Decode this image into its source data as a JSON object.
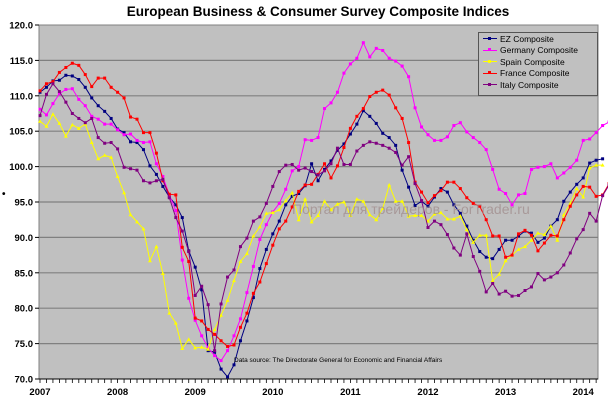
{
  "chart_data": {
    "type": "line",
    "title": "European Business & Consumer Survey Composite Indices",
    "xlabel": "",
    "ylabel": "",
    "ylim": [
      70,
      120
    ],
    "yticks": [
      "70.0",
      "75.0",
      "80.0",
      "85.0",
      "90.0",
      "95.0",
      "100.0",
      "105.0",
      "110.0",
      "115.0",
      "120.0"
    ],
    "xticks": [
      "2007",
      "2008",
      "2009",
      "2010",
      "2011",
      "2012",
      "2013",
      "2014"
    ],
    "x_start": "2007-01",
    "frequency": "monthly",
    "grid": true,
    "legend_position": "top-right",
    "annotation": "Data source: The Directorate General for Economic and Financial Affairs",
    "watermark": "Портал для трейдеров - ForTrader.ru",
    "series": [
      {
        "name": "EZ Composite",
        "color": "#000080",
        "marker": "square",
        "values": [
          110.5,
          111.2,
          112.1,
          112.2,
          112.9,
          112.8,
          112.3,
          111.2,
          109.7,
          108.6,
          107.8,
          106.8,
          105.3,
          104.8,
          103.5,
          103.4,
          102.4,
          100.1,
          98.9,
          97.2,
          95.7,
          94.6,
          92.8,
          88.1,
          85.8,
          82.6,
          74.0,
          73.8,
          71.4,
          70.3,
          72.0,
          75.4,
          78.2,
          81.5,
          85.6,
          88.3,
          90.5,
          92.3,
          94.6,
          95.8,
          96.2,
          97.3,
          100.4,
          98.0,
          99.6,
          100.8,
          102.3,
          103.2,
          104.6,
          106.0,
          107.9,
          107.1,
          106.1,
          104.7,
          104.1,
          103.0,
          99.5,
          97.1,
          94.5,
          95.1,
          94.4,
          95.7,
          96.9,
          96.4,
          94.6,
          93.4,
          91.6,
          89.6,
          88.0,
          87.2,
          87.0,
          88.3,
          89.6,
          89.6,
          90.2,
          90.9,
          90.6,
          89.3,
          89.9,
          91.6,
          92.5,
          95.1,
          96.4,
          97.5,
          98.4,
          100.5,
          100.9,
          101.1
        ]
      },
      {
        "name": "Germany Composite",
        "color": "#ff00ff",
        "marker": "square",
        "values": [
          108.1,
          107.3,
          108.9,
          110.3,
          110.9,
          111.0,
          109.5,
          108.6,
          107.1,
          106.7,
          106.0,
          106.0,
          105.2,
          104.5,
          104.6,
          103.7,
          103.4,
          103.5,
          100.4,
          98.6,
          96.0,
          93.8,
          86.8,
          81.4,
          78.3,
          76.1,
          74.4,
          73.3,
          72.6,
          74.0,
          76.1,
          78.5,
          82.2,
          85.9,
          89.7,
          91.8,
          93.6,
          94.8,
          96.8,
          99.4,
          100.0,
          103.8,
          103.7,
          104.1,
          108.2,
          109.0,
          110.5,
          113.2,
          114.5,
          115.3,
          117.5,
          115.5,
          116.7,
          116.4,
          115.3,
          114.9,
          114.2,
          112.7,
          108.3,
          105.6,
          104.5,
          103.7,
          103.7,
          104.2,
          105.8,
          106.2,
          104.9,
          104.1,
          103.4,
          102.4,
          99.6,
          96.8,
          96.2,
          94.6,
          96.0,
          96.2,
          99.6,
          99.9,
          100.0,
          100.4,
          98.4,
          99.1,
          99.9,
          100.9,
          103.7,
          103.9,
          104.8,
          105.8,
          106.3,
          106.8,
          107.3
        ]
      },
      {
        "name": "Spain Composite",
        "color": "#ffff00",
        "marker": "triangle",
        "values": [
          106.4,
          105.7,
          107.4,
          106.1,
          104.3,
          105.9,
          105.4,
          106.0,
          103.4,
          101.1,
          101.6,
          101.3,
          98.6,
          96.3,
          93.2,
          92.2,
          91.2,
          86.7,
          88.7,
          84.9,
          79.3,
          77.9,
          74.3,
          75.6,
          74.4,
          74.5,
          74.2,
          77.0,
          79.0,
          81.1,
          83.9,
          86.6,
          87.7,
          90.2,
          91.5,
          93.4,
          93.5,
          93.9,
          95.2,
          96.3,
          92.5,
          95.4,
          92.2,
          93.1,
          95.1,
          93.9,
          94.7,
          95.0,
          93.1,
          95.4,
          95.1,
          93.2,
          92.5,
          94.1,
          97.4,
          95.1,
          95.1,
          93.0,
          93.1,
          93.1,
          92.3,
          93.3,
          93.5,
          92.6,
          92.6,
          93.0,
          91.1,
          89.3,
          90.3,
          90.3,
          83.9,
          84.8,
          86.7,
          87.5,
          88.3,
          88.7,
          89.6,
          90.6,
          90.4,
          91.6,
          89.6,
          93.2,
          94.8,
          96.9,
          95.7,
          99.8,
          100.2,
          100.2
        ]
      },
      {
        "name": "France Composite",
        "color": "#ff0000",
        "marker": "square",
        "values": [
          110.7,
          111.7,
          112.0,
          113.3,
          114.0,
          114.6,
          114.3,
          113.0,
          111.3,
          112.5,
          112.5,
          111.2,
          110.5,
          109.7,
          107.0,
          106.7,
          104.8,
          104.8,
          101.9,
          98.0,
          96.1,
          96.0,
          88.6,
          86.6,
          78.6,
          78.2,
          77.0,
          76.3,
          75.4,
          74.6,
          74.8,
          77.3,
          79.3,
          82.1,
          83.7,
          86.3,
          88.9,
          91.2,
          92.3,
          94.3,
          96.5,
          97.4,
          97.5,
          98.9,
          100.4,
          98.4,
          100.1,
          102.7,
          105.4,
          107.1,
          108.2,
          109.9,
          110.5,
          110.8,
          110.1,
          108.3,
          106.8,
          103.4,
          97.8,
          96.4,
          94.9,
          95.9,
          96.6,
          97.8,
          97.8,
          96.9,
          95.6,
          94.8,
          94.4,
          92.5,
          90.2,
          90.2,
          87.2,
          87.5,
          90.5,
          91.0,
          90.3,
          88.1,
          89.2,
          90.3,
          90.2,
          92.5,
          94.4,
          96.0,
          97.2,
          97.1,
          95.8,
          96.0,
          97.6,
          96.1
        ]
      },
      {
        "name": "Italy Composite",
        "color": "#800080",
        "marker": "square",
        "values": [
          107.2,
          110.2,
          111.7,
          110.6,
          109.1,
          107.5,
          106.8,
          106.2,
          106.8,
          104.1,
          103.3,
          103.4,
          102.5,
          99.9,
          99.7,
          99.5,
          98.0,
          97.7,
          98.0,
          98.2,
          95.6,
          92.8,
          90.9,
          88.0,
          81.8,
          83.1,
          80.5,
          74.0,
          80.6,
          84.4,
          85.4,
          88.7,
          89.9,
          92.3,
          92.9,
          94.8,
          97.2,
          99.3,
          100.2,
          100.3,
          99.5,
          99.8,
          99.3,
          98.8,
          99.4,
          100.4,
          102.6,
          100.3,
          100.3,
          102.2,
          103.0,
          103.5,
          103.3,
          103.0,
          102.6,
          102.0,
          100.2,
          101.4,
          97.6,
          95.2,
          91.4,
          92.3,
          91.8,
          90.4,
          88.5,
          87.5,
          90.5,
          87.3,
          85.2,
          82.3,
          83.5,
          82.0,
          82.4,
          81.7,
          81.8,
          82.5,
          83.0,
          84.9,
          84.0,
          84.4,
          85.0,
          86.1,
          87.8,
          89.8,
          91.1,
          93.4,
          92.3,
          95.9,
          97.4,
          99.5
        ]
      }
    ]
  }
}
